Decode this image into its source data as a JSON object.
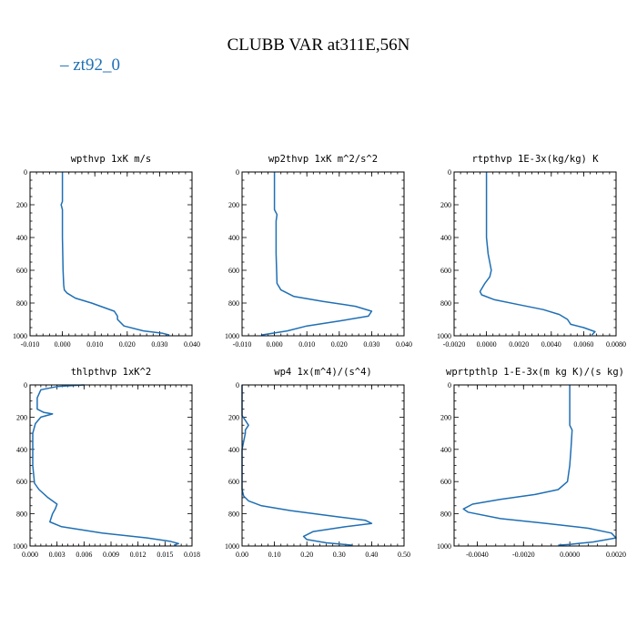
{
  "figure": {
    "title": "CLUBB VAR at311E,56N",
    "legend": [
      {
        "label": "– zt92_0",
        "color": "#1f6fb4"
      }
    ]
  },
  "chart_data": [
    {
      "type": "line",
      "title": "wpthvp  1xK m/s",
      "xlim": [
        -0.01,
        0.04
      ],
      "ylim": [
        1000,
        0
      ],
      "xticks": [
        -0.01,
        0.0,
        0.01,
        0.02,
        0.03,
        0.04
      ],
      "xtick_labels": [
        "-0.010",
        "0.000",
        "0.010",
        "0.020",
        "0.030",
        "0.040"
      ],
      "yticks": [
        0,
        200,
        400,
        600,
        800,
        1000
      ],
      "ytick_labels": [
        "0",
        "200",
        "400",
        "600",
        "800",
        "1000"
      ],
      "series": [
        {
          "color": "#1f6fb4",
          "x": [
            0.0,
            0.0,
            -0.0004,
            0.0,
            0.0,
            0.0002,
            0.0004,
            0.0006,
            0.0015,
            0.004,
            0.009,
            0.016,
            0.017,
            0.017,
            0.019,
            0.025,
            0.031,
            0.033
          ],
          "y": [
            0,
            180,
            200,
            230,
            400,
            600,
            690,
            720,
            740,
            770,
            800,
            850,
            880,
            900,
            940,
            970,
            985,
            995
          ]
        }
      ]
    },
    {
      "type": "line",
      "title": "wp2thvp  1xK m^2/s^2",
      "xlim": [
        -0.01,
        0.04
      ],
      "ylim": [
        1000,
        0
      ],
      "xticks": [
        -0.01,
        0.0,
        0.01,
        0.02,
        0.03,
        0.04
      ],
      "xtick_labels": [
        "-0.010",
        "0.000",
        "0.010",
        "0.020",
        "0.030",
        "0.040"
      ],
      "yticks": [
        0,
        200,
        400,
        600,
        800,
        1000
      ],
      "ytick_labels": [
        "0",
        "200",
        "400",
        "600",
        "800",
        "1000"
      ],
      "series": [
        {
          "color": "#1f6fb4",
          "x": [
            0.0,
            0.0,
            0.0008,
            0.0005,
            0.0005,
            0.0008,
            0.002,
            0.006,
            0.015,
            0.025,
            0.03,
            0.029,
            0.02,
            0.01,
            0.004,
            -0.004
          ],
          "y": [
            0,
            230,
            260,
            300,
            500,
            680,
            720,
            760,
            790,
            820,
            850,
            880,
            910,
            940,
            970,
            995
          ]
        }
      ]
    },
    {
      "type": "line",
      "title": "rtpthvp  1E-3x(kg/kg) K",
      "xlim": [
        -0.002,
        0.008
      ],
      "ylim": [
        1000,
        0
      ],
      "xticks": [
        -0.002,
        0.0,
        0.002,
        0.004,
        0.006,
        0.008
      ],
      "xtick_labels": [
        "-0.0020",
        "0.0000",
        "0.0020",
        "0.0040",
        "0.0060",
        "0.0080"
      ],
      "yticks": [
        0,
        200,
        400,
        600,
        800,
        1000
      ],
      "ytick_labels": [
        "0",
        "200",
        "400",
        "600",
        "800",
        "1000"
      ],
      "series": [
        {
          "color": "#1f6fb4",
          "x": [
            0.0,
            0.0,
            0.0001,
            0.0003,
            0.0002,
            -0.0001,
            -0.0004,
            -0.0003,
            0.0005,
            0.002,
            0.0035,
            0.0045,
            0.005,
            0.0052,
            0.006,
            0.0067,
            0.0065
          ],
          "y": [
            0,
            400,
            500,
            600,
            640,
            680,
            730,
            750,
            780,
            810,
            840,
            870,
            900,
            930,
            950,
            975,
            995
          ]
        }
      ]
    },
    {
      "type": "line",
      "title": "thlpthvp  1xK^2",
      "xlim": [
        0.0,
        0.018
      ],
      "ylim": [
        1000,
        0
      ],
      "xticks": [
        0.0,
        0.003,
        0.006,
        0.009,
        0.012,
        0.015,
        0.018
      ],
      "xtick_labels": [
        "0.000",
        "0.003",
        "0.006",
        "0.009",
        "0.012",
        "0.015",
        "0.018"
      ],
      "yticks": [
        0,
        200,
        400,
        600,
        800,
        1000
      ],
      "ytick_labels": [
        "0",
        "200",
        "400",
        "600",
        "800",
        "1000"
      ],
      "series": [
        {
          "color": "#1f6fb4",
          "x": [
            0.006,
            0.003,
            0.0012,
            0.0008,
            0.0008,
            0.0015,
            0.0025,
            0.0012,
            0.0006,
            0.0003,
            0.0003,
            0.0005,
            0.001,
            0.002,
            0.003,
            0.0028,
            0.0025,
            0.0022,
            0.0035,
            0.008,
            0.013,
            0.0155,
            0.0165,
            0.016
          ],
          "y": [
            0,
            10,
            30,
            80,
            150,
            170,
            180,
            200,
            240,
            300,
            500,
            610,
            650,
            700,
            740,
            770,
            800,
            850,
            880,
            920,
            950,
            970,
            985,
            995
          ]
        }
      ]
    },
    {
      "type": "line",
      "title": "wp4  1x(m^4)/(s^4)",
      "xlim": [
        0.0,
        0.5
      ],
      "ylim": [
        1000,
        0
      ],
      "xticks": [
        0.0,
        0.1,
        0.2,
        0.3,
        0.4,
        0.5
      ],
      "xtick_labels": [
        "0.00",
        "0.10",
        "0.20",
        "0.30",
        "0.40",
        "0.50"
      ],
      "yticks": [
        0,
        200,
        400,
        600,
        800,
        1000
      ],
      "ytick_labels": [
        "0",
        "200",
        "400",
        "600",
        "800",
        "1000"
      ],
      "series": [
        {
          "color": "#1f6fb4",
          "x": [
            0.0,
            0.0,
            0.01,
            0.02,
            0.01,
            0.01,
            0.0,
            0.0,
            0.005,
            0.02,
            0.06,
            0.15,
            0.3,
            0.38,
            0.4,
            0.32,
            0.22,
            0.19,
            0.2,
            0.26,
            0.34
          ],
          "y": [
            0,
            190,
            220,
            250,
            280,
            300,
            400,
            650,
            690,
            720,
            750,
            780,
            820,
            840,
            860,
            880,
            910,
            940,
            960,
            980,
            995
          ]
        }
      ]
    },
    {
      "type": "line",
      "title": "wprtpthlp  1-E-3x(m kg K)/(s kg)",
      "xlim": [
        -0.005,
        0.002
      ],
      "ylim": [
        1000,
        0
      ],
      "xticks": [
        -0.004,
        -0.002,
        0.0,
        0.002
      ],
      "xtick_labels": [
        "-0.0040",
        "-0.0020",
        "0.0000",
        "0.0020"
      ],
      "yticks": [
        0,
        200,
        400,
        600,
        800,
        1000
      ],
      "ytick_labels": [
        "0",
        "200",
        "400",
        "600",
        "800",
        "1000"
      ],
      "series": [
        {
          "color": "#1f6fb4",
          "x": [
            0.0,
            0.0,
            0.0001,
            5e-05,
            0.0,
            -0.0001,
            -0.0005,
            -0.0015,
            -0.003,
            -0.0042,
            -0.0046,
            -0.0044,
            -0.003,
            -0.001,
            0.0008,
            0.0018,
            0.002,
            0.001,
            0.0,
            -0.0005
          ],
          "y": [
            0,
            250,
            280,
            400,
            500,
            600,
            650,
            680,
            710,
            740,
            770,
            790,
            830,
            860,
            890,
            920,
            950,
            975,
            990,
            995
          ]
        }
      ]
    }
  ]
}
